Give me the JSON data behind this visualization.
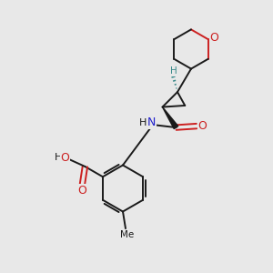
{
  "bg_color": "#e8e8e8",
  "bond_color": "#1a1a1a",
  "N_color": "#2020cc",
  "O_color": "#cc2020",
  "H_color": "#3a8a8a",
  "figsize": [
    3.0,
    3.0
  ],
  "dpi": 100,
  "lw": 1.4,
  "fs": 8.5,
  "xlim": [
    0,
    10
  ],
  "ylim": [
    0,
    10
  ]
}
